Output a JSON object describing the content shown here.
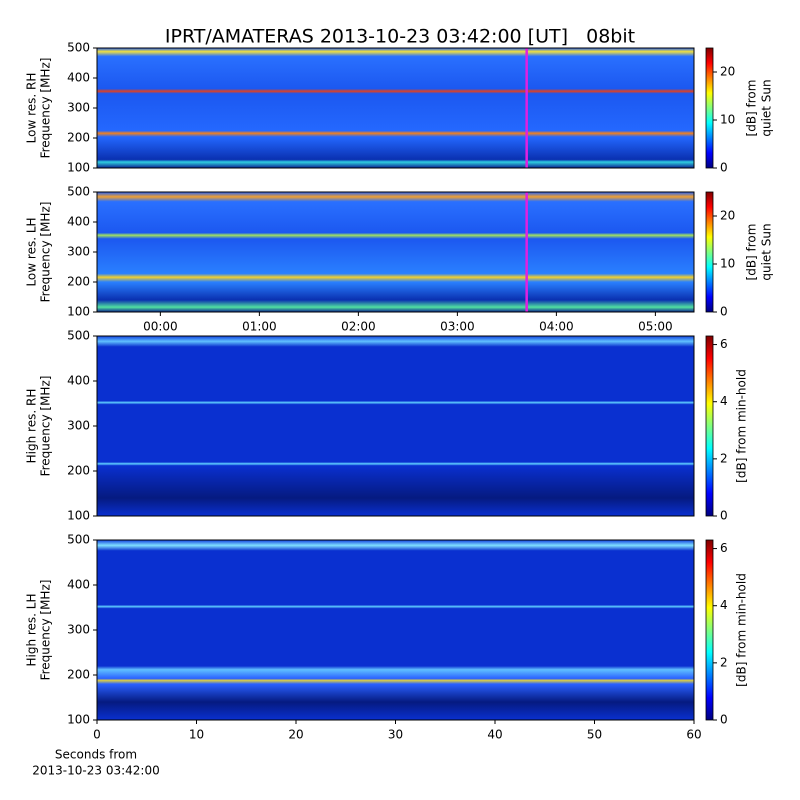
{
  "title": "IPRT/AMATERAS 2013-10-23 03:42:00 [UT]   08bit",
  "chart_data": [
    {
      "type": "heatmap",
      "ylabel": [
        "Low res. RH",
        "Frequency [MHz]"
      ],
      "ylim": [
        100,
        500
      ],
      "yticks": [
        100,
        200,
        300,
        400,
        500
      ],
      "xlim": [
        -0.64,
        5.39
      ],
      "marker": 3.7,
      "marker_color": "#e020e0",
      "colorbar_label": [
        "[dB] from",
        "quiet Sun"
      ],
      "clim": [
        0,
        25
      ],
      "cticks": [
        0,
        10,
        20
      ]
    },
    {
      "type": "heatmap",
      "ylabel": [
        "Low res. LH",
        "Frequency [MHz]"
      ],
      "ylim": [
        100,
        500
      ],
      "yticks": [
        100,
        200,
        300,
        400,
        500
      ],
      "xlim": [
        -0.64,
        5.39
      ],
      "xticks": [
        {
          "value": 0,
          "label": "00:00"
        },
        {
          "value": 1,
          "label": "01:00"
        },
        {
          "value": 2,
          "label": "02:00"
        },
        {
          "value": 3,
          "label": "03:00"
        },
        {
          "value": 4,
          "label": "04:00"
        },
        {
          "value": 5,
          "label": "05:00"
        }
      ],
      "marker": 3.7,
      "marker_color": "#e020e0",
      "colorbar_label": [
        "[dB] from",
        "quiet Sun"
      ],
      "clim": [
        0,
        25
      ],
      "cticks": [
        0,
        10,
        20
      ]
    },
    {
      "type": "heatmap",
      "ylabel": [
        "High res. RH",
        "Frequency [MHz]"
      ],
      "ylim": [
        100,
        500
      ],
      "yticks": [
        100,
        200,
        300,
        400,
        500
      ],
      "xlim": [
        0,
        60
      ],
      "colorbar_label": [
        "[dB] from min-hold"
      ],
      "clim": [
        0,
        6.3
      ],
      "cticks": [
        0,
        2,
        4,
        6
      ]
    },
    {
      "type": "heatmap",
      "ylabel": [
        "High res. LH",
        "Frequency [MHz]"
      ],
      "ylim": [
        100,
        500
      ],
      "yticks": [
        100,
        200,
        300,
        400,
        500
      ],
      "xlim": [
        0,
        60
      ],
      "xticks": [
        0,
        10,
        20,
        30,
        40,
        50,
        60
      ],
      "xlabel": [
        "Seconds from",
        "2013-10-23 03:42:00"
      ],
      "colorbar_label": [
        "[dB] from min-hold"
      ],
      "clim": [
        0,
        6.3
      ],
      "cticks": [
        0,
        2,
        4,
        6
      ]
    }
  ]
}
